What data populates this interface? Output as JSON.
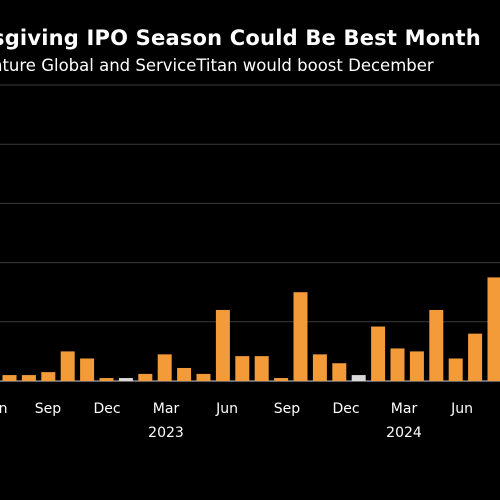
{
  "title": "sgiving IPO Season Could Be Best Month",
  "subtitle": "nture Global and ServiceTitan would boost December",
  "chart_data": {
    "type": "bar",
    "ylim": [
      0,
      5
    ],
    "grid": true,
    "bar_color": "#f29b38",
    "highlight_color": "#d9d9d9",
    "x_tick_labels": [
      "n",
      "Sep",
      "Dec",
      "Mar",
      "Jun",
      "Sep",
      "Dec",
      "Mar",
      "Jun"
    ],
    "year_labels": [
      "2023",
      "2024"
    ],
    "values": [
      0.1,
      0.1,
      0.15,
      0.5,
      0.38,
      0.05,
      0.05,
      0.12,
      0.45,
      0.22,
      0.12,
      1.2,
      0.42,
      0.42,
      0.05,
      1.5,
      0.45,
      0.3,
      0.1,
      0.92,
      0.55,
      0.5,
      1.2,
      0.38,
      0.8,
      1.75,
      0.3
    ],
    "highlight_index": [
      6,
      18
    ]
  }
}
